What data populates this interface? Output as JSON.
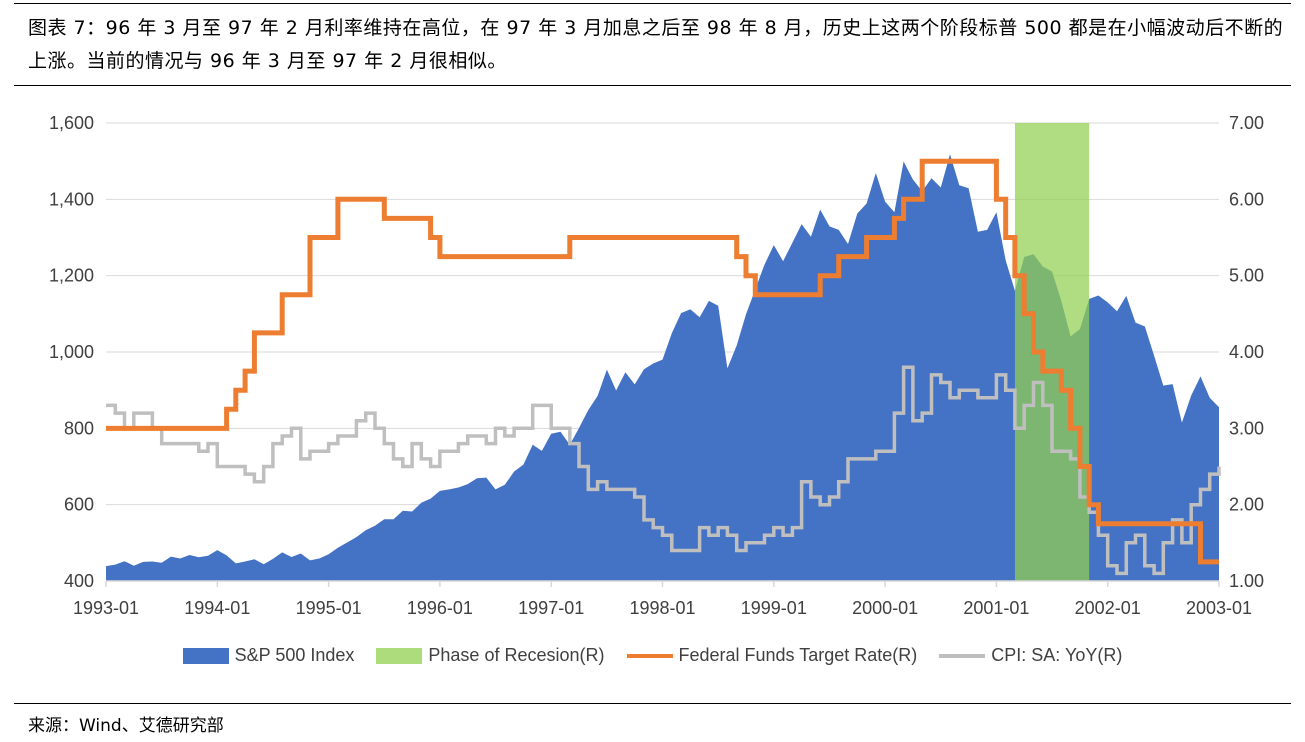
{
  "title": "图表 7：96 年 3 月至 97 年 2 月利率维持在高位，在 97 年 3 月加息之后至 98 年 8 月，历史上这两个阶段标普 500 都是在小幅波动后不断的上涨。当前的情况与 96 年 3 月至 97 年 2 月很相似。",
  "source": "来源：Wind、艾德研究部",
  "chart_data": {
    "type": "area",
    "x_range": [
      "1993-01",
      "2003-01"
    ],
    "x_ticks": [
      "1993-01",
      "1994-01",
      "1995-01",
      "1996-01",
      "1997-01",
      "1998-01",
      "1999-01",
      "2000-01",
      "2001-01",
      "2002-01",
      "2003-01"
    ],
    "y_left": {
      "range": [
        400,
        1600
      ],
      "ticks": [
        "400",
        "600",
        "800",
        "1,000",
        "1,200",
        "1,400",
        "1,600"
      ]
    },
    "y_right": {
      "range": [
        1,
        7
      ],
      "ticks": [
        "1.00",
        "2.00",
        "3.00",
        "4.00",
        "5.00",
        "6.00",
        "7.00"
      ]
    },
    "grid": true,
    "legend_position": "bottom",
    "colors": {
      "sp500": "#4472C4",
      "recession": "#92D050",
      "fed": "#ED7D31",
      "cpi": "#BFBFBF"
    },
    "series": [
      {
        "name": "S&P 500 Index",
        "axis": "left",
        "type": "area",
        "start": "1993-01",
        "values": [
          439,
          443,
          452,
          440,
          450,
          451,
          448,
          464,
          459,
          468,
          462,
          466,
          481,
          467,
          446,
          451,
          457,
          444,
          458,
          475,
          463,
          472,
          454,
          459,
          470,
          487,
          501,
          515,
          533,
          545,
          562,
          562,
          584,
          582,
          605,
          616,
          636,
          640,
          645,
          654,
          669,
          671,
          640,
          652,
          687,
          705,
          757,
          741,
          786,
          791,
          757,
          801,
          848,
          885,
          954,
          899,
          947,
          915,
          955,
          970,
          980,
          1049,
          1102,
          1112,
          1091,
          1134,
          1121,
          957,
          1017,
          1099,
          1164,
          1229,
          1280,
          1238,
          1286,
          1335,
          1302,
          1373,
          1329,
          1320,
          1283,
          1363,
          1389,
          1469,
          1394,
          1366,
          1499,
          1452,
          1421,
          1455,
          1431,
          1518,
          1437,
          1429,
          1315,
          1320,
          1366,
          1240,
          1160,
          1249,
          1256,
          1224,
          1211,
          1134,
          1041,
          1060,
          1139,
          1148,
          1130,
          1107,
          1147,
          1077,
          1067,
          990,
          912,
          916,
          815,
          886,
          936,
          880,
          855
        ]
      },
      {
        "name": "Phase of Recesion(R)",
        "axis": "right",
        "type": "band",
        "from": "2001-03",
        "to": "2001-11"
      },
      {
        "name": "Federal Funds Target Rate(R)",
        "axis": "right",
        "type": "step",
        "points": [
          [
            "1993-01",
            3.0
          ],
          [
            "1994-02",
            3.25
          ],
          [
            "1994-03",
            3.5
          ],
          [
            "1994-04",
            3.75
          ],
          [
            "1994-05",
            4.25
          ],
          [
            "1994-08",
            4.75
          ],
          [
            "1994-11",
            5.5
          ],
          [
            "1995-02",
            6.0
          ],
          [
            "1995-07",
            5.75
          ],
          [
            "1995-12",
            5.5
          ],
          [
            "1996-01",
            5.25
          ],
          [
            "1997-03",
            5.5
          ],
          [
            "1998-09",
            5.25
          ],
          [
            "1998-10",
            5.0
          ],
          [
            "1998-11",
            4.75
          ],
          [
            "1999-06",
            5.0
          ],
          [
            "1999-08",
            5.25
          ],
          [
            "1999-11",
            5.5
          ],
          [
            "2000-02",
            5.75
          ],
          [
            "2000-03",
            6.0
          ],
          [
            "2000-05",
            6.5
          ],
          [
            "2001-01",
            6.0
          ],
          [
            "2001-02",
            5.5
          ],
          [
            "2001-03",
            5.0
          ],
          [
            "2001-04",
            4.5
          ],
          [
            "2001-05",
            4.0
          ],
          [
            "2001-06",
            3.75
          ],
          [
            "2001-08",
            3.5
          ],
          [
            "2001-09",
            3.0
          ],
          [
            "2001-10",
            2.5
          ],
          [
            "2001-11",
            2.0
          ],
          [
            "2001-12",
            1.75
          ],
          [
            "2002-11",
            1.25
          ],
          [
            "2003-01",
            1.25
          ]
        ]
      },
      {
        "name": "CPI: SA: YoY(R)",
        "axis": "right",
        "type": "step",
        "start": "1993-01",
        "values": [
          3.3,
          3.2,
          3.0,
          3.2,
          3.2,
          3.0,
          2.8,
          2.8,
          2.8,
          2.8,
          2.7,
          2.8,
          2.5,
          2.5,
          2.5,
          2.4,
          2.3,
          2.5,
          2.8,
          2.9,
          3.0,
          2.6,
          2.7,
          2.7,
          2.8,
          2.9,
          2.9,
          3.1,
          3.2,
          3.0,
          2.8,
          2.6,
          2.5,
          2.8,
          2.6,
          2.5,
          2.7,
          2.7,
          2.8,
          2.9,
          2.9,
          2.8,
          3.0,
          2.9,
          3.0,
          3.0,
          3.3,
          3.3,
          3.0,
          3.0,
          2.8,
          2.5,
          2.2,
          2.3,
          2.2,
          2.2,
          2.2,
          2.1,
          1.8,
          1.7,
          1.6,
          1.4,
          1.4,
          1.4,
          1.7,
          1.6,
          1.7,
          1.6,
          1.4,
          1.5,
          1.5,
          1.6,
          1.7,
          1.6,
          1.7,
          2.3,
          2.1,
          2.0,
          2.1,
          2.3,
          2.6,
          2.6,
          2.6,
          2.7,
          2.7,
          3.2,
          3.8,
          3.1,
          3.2,
          3.7,
          3.6,
          3.4,
          3.5,
          3.5,
          3.4,
          3.4,
          3.7,
          3.5,
          3.0,
          3.3,
          3.6,
          3.3,
          2.7,
          2.7,
          2.6,
          2.1,
          1.9,
          1.6,
          1.2,
          1.1,
          1.5,
          1.6,
          1.2,
          1.1,
          1.5,
          1.8,
          1.5,
          2.0,
          2.2,
          2.4,
          2.5
        ]
      }
    ]
  }
}
